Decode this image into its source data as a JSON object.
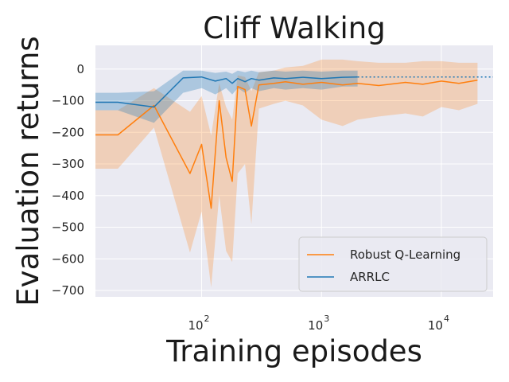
{
  "chart_data": {
    "type": "line",
    "title": "Cliff Walking",
    "xlabel": "Training episodes",
    "ylabel": "Evaluation returns",
    "xscale": "log",
    "xlim": [
      13,
      27000
    ],
    "ylim": [
      -720,
      75
    ],
    "yticks": [
      0,
      -100,
      -200,
      -300,
      -400,
      -500,
      -600,
      -700
    ],
    "xticks": [
      {
        "base": "10",
        "exp": "2",
        "value": 100
      },
      {
        "base": "10",
        "exp": "3",
        "value": 1000
      },
      {
        "base": "10",
        "exp": "4",
        "value": 10000
      }
    ],
    "grid": true,
    "legend_position": "bottom-right",
    "reference_line": {
      "y": -25,
      "style": "dotted",
      "color": "#1f77b4"
    },
    "series": [
      {
        "name": "Robust Q-Learning",
        "color": "#ff7f0e",
        "x": [
          13,
          20,
          40,
          80,
          100,
          120,
          140,
          160,
          180,
          200,
          230,
          260,
          300,
          400,
          500,
          700,
          1000,
          1500,
          2000,
          3000,
          5000,
          7000,
          10000,
          14000,
          20000
        ],
        "y": [
          -208,
          -208,
          -115,
          -330,
          -238,
          -440,
          -100,
          -280,
          -355,
          -55,
          -65,
          -180,
          -50,
          -45,
          -40,
          -48,
          -42,
          -50,
          -45,
          -52,
          -42,
          -48,
          -38,
          -45,
          -35
        ],
        "upper": [
          -130,
          -130,
          -60,
          -135,
          -85,
          -210,
          -45,
          -120,
          -160,
          -20,
          -25,
          -70,
          -10,
          -5,
          5,
          10,
          30,
          30,
          25,
          20,
          20,
          25,
          25,
          20,
          20
        ],
        "lower": [
          -315,
          -315,
          -185,
          -580,
          -450,
          -690,
          -400,
          -575,
          -610,
          -330,
          -300,
          -490,
          -125,
          -110,
          -100,
          -115,
          -160,
          -180,
          -160,
          -150,
          -140,
          -150,
          -120,
          -130,
          -110
        ]
      },
      {
        "name": "ARRLC",
        "color": "#1f77b4",
        "x": [
          13,
          20,
          40,
          70,
          100,
          130,
          160,
          180,
          200,
          230,
          260,
          300,
          400,
          500,
          700,
          1000,
          1500,
          2000
        ],
        "y": [
          -105,
          -105,
          -120,
          -28,
          -25,
          -38,
          -30,
          -45,
          -30,
          -40,
          -30,
          -35,
          -28,
          -30,
          -26,
          -30,
          -26,
          -25
        ],
        "upper": [
          -75,
          -75,
          -70,
          -5,
          -5,
          -12,
          -8,
          -15,
          -5,
          -10,
          -5,
          -10,
          -5,
          -8,
          -5,
          -8,
          -5,
          -5
        ],
        "lower": [
          -130,
          -130,
          -170,
          -75,
          -60,
          -80,
          -60,
          -80,
          -60,
          -75,
          -60,
          -70,
          -60,
          -65,
          -60,
          -65,
          -55,
          -55
        ]
      }
    ]
  }
}
